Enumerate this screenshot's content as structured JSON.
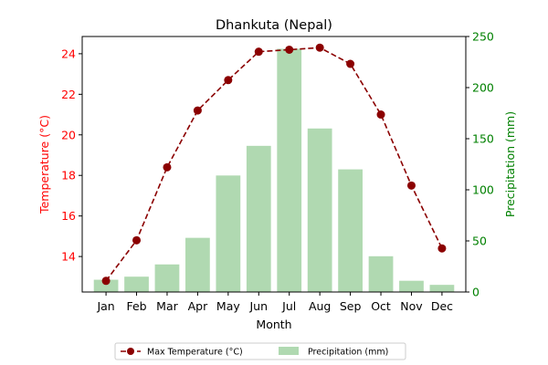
{
  "chart_data": {
    "type": "bar+line",
    "title": "Dhankuta (Nepal)",
    "xlabel": "Month",
    "categories": [
      "Jan",
      "Feb",
      "Mar",
      "Apr",
      "May",
      "Jun",
      "Jul",
      "Aug",
      "Sep",
      "Oct",
      "Nov",
      "Dec"
    ],
    "left_axis": {
      "label": "Temperature (°C)",
      "color": "#ff0000",
      "range": [
        12.25,
        24.85
      ],
      "ticks": [
        14,
        16,
        18,
        20,
        22,
        24
      ]
    },
    "right_axis": {
      "label": "Precipitation (mm)",
      "color": "#008000",
      "range": [
        0,
        250
      ],
      "ticks": [
        0,
        50,
        100,
        150,
        200,
        250
      ]
    },
    "series": [
      {
        "name": "Max Temperature (°C)",
        "type": "line",
        "axis": "left",
        "color": "#8b0000",
        "style": "dashed",
        "marker": "circle",
        "values": [
          12.8,
          14.8,
          18.4,
          21.2,
          22.7,
          24.1,
          24.2,
          24.3,
          23.5,
          21.0,
          17.5,
          14.4
        ]
      },
      {
        "name": "Precipitation (mm)",
        "type": "bar",
        "axis": "right",
        "color": "#b0d9b1",
        "values": [
          12,
          15,
          27,
          53,
          114,
          143,
          238,
          160,
          120,
          35,
          11,
          7
        ]
      }
    ],
    "legend": {
      "position": "bottom-center",
      "columns": 2
    },
    "grid": false
  }
}
